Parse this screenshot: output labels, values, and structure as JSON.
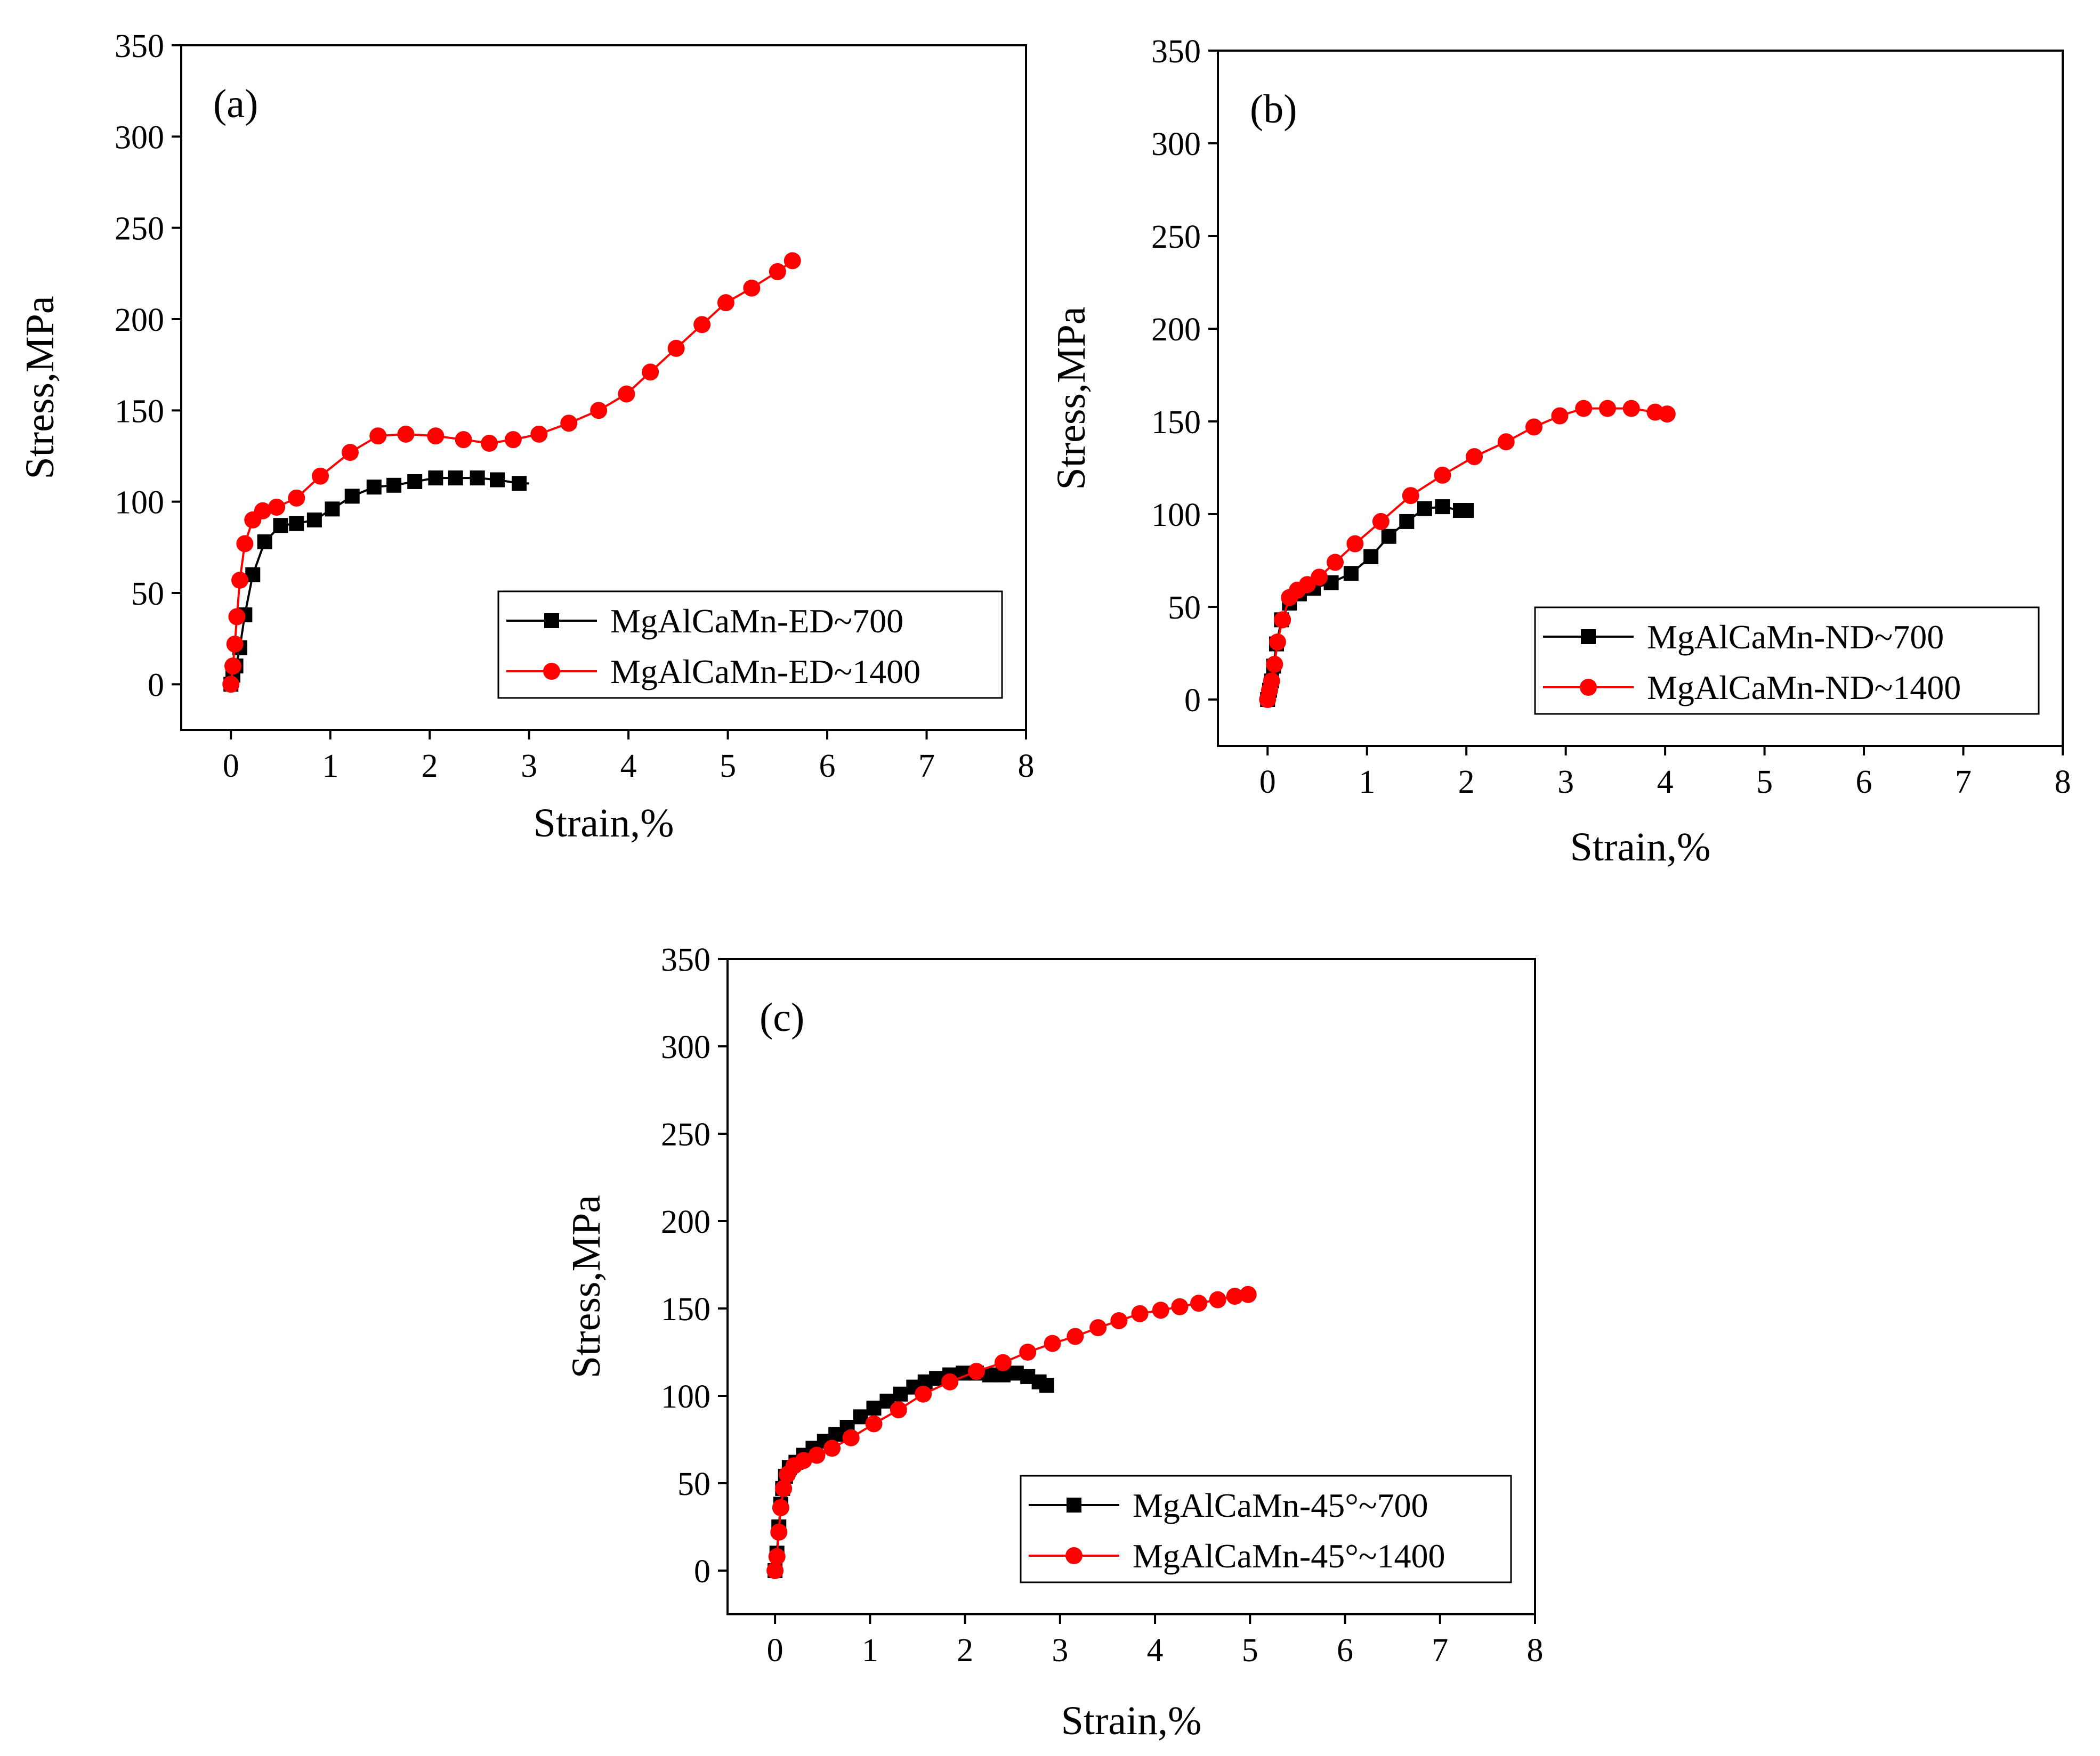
{
  "figure": {
    "description_free": true
  },
  "colors": {
    "series_700": "#000000",
    "series_1400": "#ff0000",
    "axis": "#000000"
  },
  "chart_data": [
    {
      "type": "line",
      "panel_label": "(a)",
      "xlabel": "Strain,%",
      "ylabel": "Stress,MPa",
      "xlim": [
        -0.5,
        8
      ],
      "ylim": [
        -25,
        350
      ],
      "xticks": [
        0,
        1,
        2,
        3,
        4,
        5,
        6,
        7,
        8
      ],
      "yticks": [
        0,
        50,
        100,
        150,
        200,
        250,
        300,
        350
      ],
      "legend_position": "bottom-right",
      "series": [
        {
          "name": "MgAlCaMn-ED~700",
          "color": "#000000",
          "marker": "square",
          "x": [
            0,
            0.02,
            0.05,
            0.09,
            0.14,
            0.22,
            0.34,
            0.5,
            0.66,
            0.84,
            1.02,
            1.22,
            1.44,
            1.64,
            1.85,
            2.06,
            2.26,
            2.48,
            2.68,
            2.9,
            3.0
          ],
          "y": [
            0,
            5,
            10,
            20,
            38,
            60,
            78,
            87,
            88,
            90,
            96,
            103,
            108,
            109,
            111,
            113,
            113,
            113,
            112,
            110,
            110
          ]
        },
        {
          "name": "MgAlCaMn-ED~1400",
          "color": "#ff0000",
          "marker": "circle",
          "x": [
            0,
            0.02,
            0.04,
            0.06,
            0.09,
            0.14,
            0.22,
            0.32,
            0.46,
            0.66,
            0.9,
            1.2,
            1.48,
            1.76,
            2.06,
            2.34,
            2.6,
            2.84,
            3.1,
            3.4,
            3.7,
            3.98,
            4.22,
            4.48,
            4.74,
            4.98,
            5.24,
            5.5,
            5.65
          ],
          "y": [
            0,
            10,
            22,
            37,
            57,
            77,
            90,
            95,
            97,
            102,
            114,
            127,
            136,
            137,
            136,
            134,
            132,
            134,
            137,
            143,
            150,
            159,
            171,
            184,
            197,
            209,
            217,
            226,
            232
          ]
        }
      ]
    },
    {
      "type": "line",
      "panel_label": "(b)",
      "xlabel": "Strain,%",
      "ylabel": "Stress,MPa",
      "xlim": [
        -0.5,
        8
      ],
      "ylim": [
        -25,
        350
      ],
      "xticks": [
        0,
        1,
        2,
        3,
        4,
        5,
        6,
        7,
        8
      ],
      "yticks": [
        0,
        50,
        100,
        150,
        200,
        250,
        300,
        350
      ],
      "legend_position": "bottom-right",
      "series": [
        {
          "name": "MgAlCaMn-ND~700",
          "color": "#000000",
          "marker": "square",
          "x": [
            0,
            0.02,
            0.04,
            0.06,
            0.09,
            0.14,
            0.22,
            0.32,
            0.46,
            0.64,
            0.84,
            1.04,
            1.22,
            1.4,
            1.58,
            1.76,
            1.94,
            2.0
          ],
          "y": [
            0,
            5,
            10,
            18,
            30,
            43,
            52,
            57,
            60,
            63,
            68,
            77,
            88,
            96,
            103,
            104,
            102,
            102
          ]
        },
        {
          "name": "MgAlCaMn-ND~1400",
          "color": "#ff0000",
          "marker": "circle",
          "x": [
            0,
            0.02,
            0.04,
            0.07,
            0.1,
            0.15,
            0.22,
            0.3,
            0.4,
            0.52,
            0.68,
            0.88,
            1.14,
            1.44,
            1.76,
            2.08,
            2.4,
            2.68,
            2.94,
            3.18,
            3.42,
            3.66,
            3.9,
            4.02
          ],
          "y": [
            0,
            5,
            10,
            19,
            31,
            43,
            55,
            59,
            62,
            66,
            74,
            84,
            96,
            110,
            121,
            131,
            139,
            147,
            153,
            157,
            157,
            157,
            155,
            154
          ]
        }
      ]
    },
    {
      "type": "line",
      "panel_label": "(c)",
      "xlabel": "Strain,%",
      "ylabel": "Stress,MPa",
      "xlim": [
        -0.5,
        8
      ],
      "ylim": [
        -25,
        350
      ],
      "xticks": [
        0,
        1,
        2,
        3,
        4,
        5,
        6,
        7,
        8
      ],
      "yticks": [
        0,
        50,
        100,
        150,
        200,
        250,
        300,
        350
      ],
      "legend_position": "bottom-right",
      "series": [
        {
          "name": "MgAlCaMn-45°~700",
          "color": "#000000",
          "marker": "square",
          "x": [
            0,
            0.02,
            0.04,
            0.06,
            0.08,
            0.11,
            0.15,
            0.22,
            0.3,
            0.4,
            0.52,
            0.64,
            0.76,
            0.9,
            1.04,
            1.18,
            1.32,
            1.46,
            1.58,
            1.7,
            1.84,
            1.98,
            2.12,
            2.26,
            2.4,
            2.54,
            2.66,
            2.78,
            2.86
          ],
          "y": [
            0,
            10,
            25,
            38,
            47,
            54,
            59,
            62,
            66,
            70,
            74,
            78,
            82,
            88,
            93,
            97,
            101,
            105,
            108,
            110,
            112,
            113,
            113,
            112,
            112,
            113,
            111,
            108,
            106
          ]
        },
        {
          "name": "MgAlCaMn-45°~1400",
          "color": "#ff0000",
          "marker": "circle",
          "x": [
            0,
            0.02,
            0.04,
            0.06,
            0.09,
            0.13,
            0.2,
            0.3,
            0.44,
            0.6,
            0.8,
            1.04,
            1.3,
            1.56,
            1.84,
            2.12,
            2.4,
            2.66,
            2.92,
            3.16,
            3.4,
            3.62,
            3.84,
            4.06,
            4.26,
            4.46,
            4.66,
            4.84,
            4.98
          ],
          "y": [
            0,
            8,
            22,
            36,
            47,
            55,
            60,
            63,
            66,
            70,
            76,
            84,
            92,
            101,
            108,
            114,
            119,
            125,
            130,
            134,
            139,
            143,
            147,
            149,
            151,
            153,
            155,
            157,
            158
          ]
        }
      ]
    }
  ]
}
